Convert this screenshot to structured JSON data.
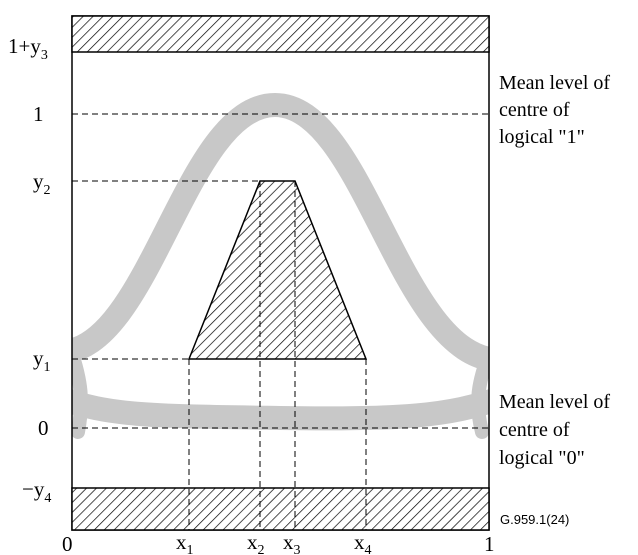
{
  "diagram": {
    "y_axis": [
      {
        "base": "1+y",
        "sub": "3"
      },
      {
        "base": "1",
        "sub": ""
      },
      {
        "base": "y",
        "sub": "2"
      },
      {
        "base": "y",
        "sub": "1"
      },
      {
        "base": "0",
        "sub": ""
      },
      {
        "base": "−y",
        "sub": "4"
      }
    ],
    "x_axis": [
      {
        "base": "0",
        "sub": ""
      },
      {
        "base": "x",
        "sub": "1"
      },
      {
        "base": "x",
        "sub": "2"
      },
      {
        "base": "x",
        "sub": "3"
      },
      {
        "base": "x",
        "sub": "4"
      },
      {
        "base": "1",
        "sub": ""
      }
    ],
    "annotations": {
      "mean_one": [
        "Mean level of",
        "centre of",
        "logical \"1\""
      ],
      "mean_zero": [
        "Mean level of",
        "centre of",
        "logical \"0\""
      ]
    },
    "figure_id": "G.959.1(24)",
    "colors": {
      "eye_band": "#c8c8c8",
      "hatch": "#000000",
      "frame": "#000000"
    }
  }
}
